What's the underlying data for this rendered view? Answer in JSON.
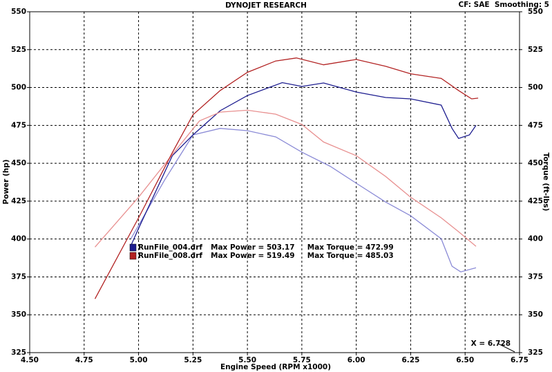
{
  "chart_data": {
    "type": "line",
    "title": "DYNOJET RESEARCH",
    "subtitle": "CF: SAE  Smoothing: 5",
    "x_label": "Engine Speed (RPM x1000)",
    "y_label": "Power (hp)",
    "y2_label": "Torque (ft-lbs)",
    "xlim": [
      4.5,
      6.75
    ],
    "xticks": [
      {
        "value": 4.5,
        "label": "4.50"
      },
      {
        "value": 4.75,
        "label": "4.75"
      },
      {
        "value": 5,
        "label": "5.00"
      },
      {
        "value": 5.25,
        "label": "5.25"
      },
      {
        "value": 5.5,
        "label": "5.50"
      },
      {
        "value": 5.75,
        "label": "5.75"
      },
      {
        "value": 6,
        "label": "6.00"
      },
      {
        "value": 6.25,
        "label": "6.25"
      },
      {
        "value": 6.5,
        "label": "6.50"
      },
      {
        "value": 6.75,
        "label": "6.75"
      }
    ],
    "ylim": [
      325,
      550
    ],
    "yticks": [
      325,
      350,
      375,
      400,
      425,
      450,
      475,
      500,
      525,
      550
    ],
    "y2lim": [
      325,
      550
    ],
    "y2ticks": [
      325,
      350,
      375,
      400,
      425,
      450,
      475,
      500,
      525,
      550
    ],
    "grid": true,
    "cursor": {
      "value": 6.728,
      "label": "X = 6.728"
    },
    "runs": [
      {
        "name": "RunFile_004.drf",
        "summary": "Max Power = 503.17     Max Torque = 472.99",
        "power": {
          "color": "#1c1c8f",
          "x": [
            4.965,
            5.0,
            5.155,
            5.25,
            5.375,
            5.5,
            5.66,
            5.75,
            5.85,
            6.0,
            6.135,
            6.25,
            6.39,
            6.44,
            6.47,
            6.52,
            6.55
          ],
          "values": [
            395.7,
            407,
            455,
            468.7,
            484.7,
            494.7,
            503.2,
            500.7,
            503,
            497,
            493.4,
            492.5,
            488.4,
            473,
            466.4,
            468.7,
            475
          ]
        },
        "torque": {
          "color": "#8a8ad6",
          "x": [
            4.965,
            5.12,
            5.25,
            5.375,
            5.5,
            5.63,
            5.75,
            5.88,
            6.0,
            6.135,
            6.25,
            6.39,
            6.44,
            6.48,
            6.55
          ],
          "values": [
            400.2,
            439,
            468.7,
            473,
            471.5,
            467.4,
            457.3,
            448,
            436.8,
            424.4,
            415.3,
            400.2,
            382,
            378.3,
            381
          ]
        }
      },
      {
        "name": "RunFile_008.drf",
        "summary": "Max Power = 519.49     Max Torque = 485.03",
        "power": {
          "color": "#b22222",
          "x": [
            4.8,
            5.0,
            5.155,
            5.25,
            5.375,
            5.5,
            5.63,
            5.725,
            5.85,
            6.0,
            6.135,
            6.25,
            6.39,
            6.47,
            6.53,
            6.56
          ],
          "values": [
            360.5,
            414,
            457,
            482,
            498,
            510,
            517.5,
            519.5,
            515,
            518.5,
            514,
            509,
            506,
            498,
            492.5,
            493
          ]
        },
        "torque": {
          "color": "#e89090",
          "x": [
            4.8,
            5.0,
            5.19,
            5.28,
            5.375,
            5.5,
            5.63,
            5.75,
            5.85,
            6.0,
            6.135,
            6.25,
            6.39,
            6.47,
            6.55
          ],
          "values": [
            394.7,
            427.6,
            462,
            478,
            483.8,
            485,
            482.4,
            475.6,
            464,
            455,
            441.3,
            427.6,
            414,
            404.8,
            395.2
          ]
        }
      }
    ]
  }
}
